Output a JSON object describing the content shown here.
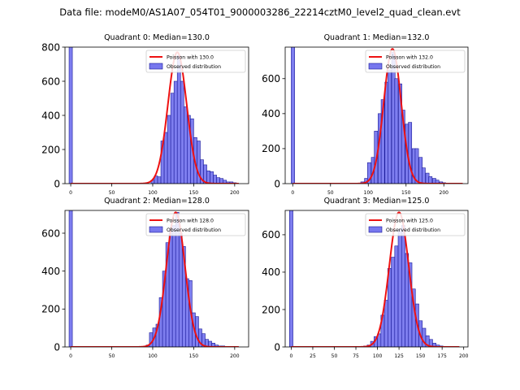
{
  "suptitle": "Data file: modeM0/AS1A07_054T01_9000003286_22214cztM0_level2_quad_clean.evt",
  "colors": {
    "hist_fill": "#7777ee",
    "hist_edge": "#1a1a99",
    "poisson": "#ee1111"
  },
  "chart_data": [
    {
      "type": "bar",
      "title": "Quadrant 0: Median=130.0",
      "xlim": [
        -7,
        217
      ],
      "ylim": [
        0,
        800
      ],
      "xticks": [
        0,
        50,
        100,
        150,
        200
      ],
      "yticks": [
        0,
        200,
        400,
        600,
        800
      ],
      "bin_width": 4,
      "series": [
        {
          "name": "Poisson with 130.0",
          "kind": "line",
          "median": 130.0,
          "peak": 770,
          "sigma": 11.4,
          "x_range": [
            0,
            205
          ]
        },
        {
          "name": "Observed distribution",
          "kind": "histogram",
          "bins": [
            [
              -2,
              820
            ],
            [
              98,
              20
            ],
            [
              102,
              45
            ],
            [
              106,
              40
            ],
            [
              110,
              250
            ],
            [
              114,
              300
            ],
            [
              118,
              400
            ],
            [
              122,
              530
            ],
            [
              126,
              600
            ],
            [
              130,
              750
            ],
            [
              134,
              600
            ],
            [
              138,
              450
            ],
            [
              142,
              400
            ],
            [
              146,
              380
            ],
            [
              150,
              270
            ],
            [
              154,
              250
            ],
            [
              158,
              140
            ],
            [
              162,
              110
            ],
            [
              166,
              75
            ],
            [
              170,
              70
            ],
            [
              174,
              50
            ],
            [
              178,
              35
            ],
            [
              182,
              30
            ],
            [
              186,
              20
            ],
            [
              190,
              10
            ],
            [
              194,
              10
            ],
            [
              198,
              5
            ]
          ]
        }
      ]
    },
    {
      "type": "bar",
      "title": "Quadrant 1: Median=132.0",
      "xlim": [
        -10,
        232
      ],
      "ylim": [
        0,
        780
      ],
      "xticks": [
        0,
        50,
        100,
        150,
        200
      ],
      "yticks": [
        0,
        200,
        400,
        600
      ],
      "bin_width": 4.5,
      "series": [
        {
          "name": "Poisson with 132.0",
          "kind": "line",
          "median": 132.0,
          "peak": 770,
          "sigma": 11.5,
          "x_range": [
            0,
            225
          ]
        },
        {
          "name": "Observed distribution",
          "kind": "histogram",
          "bins": [
            [
              -2,
              790
            ],
            [
              90,
              10
            ],
            [
              95,
              30
            ],
            [
              99,
              120
            ],
            [
              104,
              150
            ],
            [
              108,
              300
            ],
            [
              113,
              400
            ],
            [
              117,
              480
            ],
            [
              122,
              580
            ],
            [
              126,
              650
            ],
            [
              131,
              750
            ],
            [
              135,
              600
            ],
            [
              140,
              570
            ],
            [
              144,
              420
            ],
            [
              149,
              340
            ],
            [
              153,
              350
            ],
            [
              158,
              200
            ],
            [
              162,
              200
            ],
            [
              167,
              150
            ],
            [
              171,
              90
            ],
            [
              176,
              60
            ],
            [
              180,
              40
            ],
            [
              185,
              30
            ],
            [
              189,
              20
            ],
            [
              194,
              10
            ],
            [
              198,
              5
            ]
          ]
        }
      ]
    },
    {
      "type": "bar",
      "title": "Quadrant 2: Median=128.0",
      "xlim": [
        -7,
        217
      ],
      "ylim": [
        0,
        720
      ],
      "xticks": [
        0,
        50,
        100,
        150,
        200
      ],
      "yticks": [
        0,
        200,
        400,
        600
      ],
      "bin_width": 4,
      "series": [
        {
          "name": "Poisson with 128.0",
          "kind": "line",
          "median": 128.0,
          "peak": 710,
          "sigma": 11.3,
          "x_range": [
            0,
            205
          ]
        },
        {
          "name": "Observed distribution",
          "kind": "histogram",
          "bins": [
            [
              -2,
              730
            ],
            [
              92,
              10
            ],
            [
              96,
              75
            ],
            [
              100,
              100
            ],
            [
              104,
              120
            ],
            [
              108,
              260
            ],
            [
              112,
              400
            ],
            [
              116,
              550
            ],
            [
              120,
              620
            ],
            [
              124,
              640
            ],
            [
              128,
              710
            ],
            [
              132,
              600
            ],
            [
              136,
              530
            ],
            [
              140,
              360
            ],
            [
              144,
              350
            ],
            [
              148,
              180
            ],
            [
              152,
              160
            ],
            [
              156,
              95
            ],
            [
              160,
              70
            ],
            [
              164,
              40
            ],
            [
              168,
              30
            ],
            [
              172,
              20
            ],
            [
              176,
              10
            ],
            [
              180,
              5
            ],
            [
              184,
              5
            ]
          ]
        }
      ]
    },
    {
      "type": "bar",
      "title": "Quadrant 3: Median=125.0",
      "xlim": [
        -7,
        205
      ],
      "ylim": [
        0,
        730
      ],
      "xticks": [
        0,
        25,
        50,
        75,
        100,
        125,
        150,
        175,
        200
      ],
      "yticks": [
        0,
        200,
        400,
        600
      ],
      "bin_width": 4,
      "series": [
        {
          "name": "Poisson with 125.0",
          "kind": "line",
          "median": 125.0,
          "peak": 720,
          "sigma": 11.2,
          "x_range": [
            0,
            195
          ]
        },
        {
          "name": "Observed distribution",
          "kind": "histogram",
          "bins": [
            [
              -2,
              740
            ],
            [
              84,
              5
            ],
            [
              88,
              10
            ],
            [
              92,
              30
            ],
            [
              96,
              55
            ],
            [
              100,
              70
            ],
            [
              104,
              170
            ],
            [
              108,
              250
            ],
            [
              112,
              420
            ],
            [
              116,
              480
            ],
            [
              120,
              540
            ],
            [
              124,
              630
            ],
            [
              128,
              650
            ],
            [
              132,
              500
            ],
            [
              136,
              450
            ],
            [
              140,
              310
            ],
            [
              144,
              230
            ],
            [
              148,
              140
            ],
            [
              152,
              100
            ],
            [
              156,
              60
            ],
            [
              160,
              40
            ],
            [
              164,
              20
            ],
            [
              168,
              10
            ],
            [
              172,
              5
            ]
          ]
        }
      ]
    }
  ]
}
